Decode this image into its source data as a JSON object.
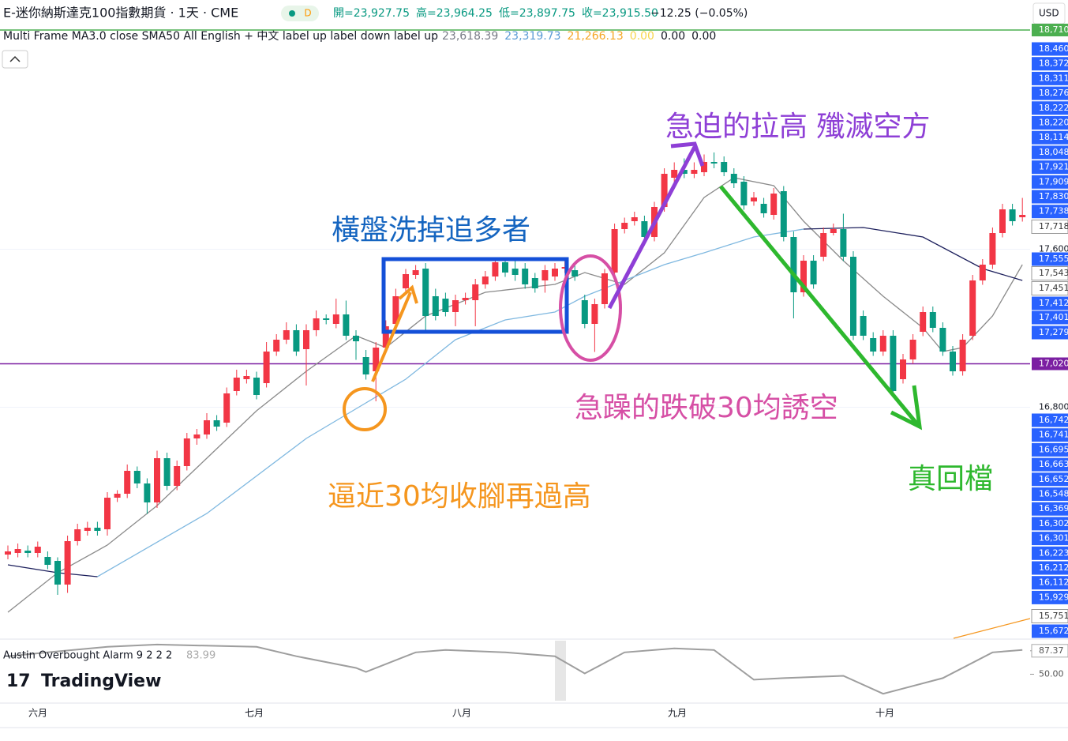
{
  "chart_data": {
    "type": "candlestick",
    "title": "E-迷你納斯達克100指數期貨 · 1天 · CME",
    "interval_badge": "D",
    "ohlc_labels": [
      "開=23,927.75",
      "高=23,964.25",
      "低=23,897.75",
      "收=23,915.50"
    ],
    "change_label": "−12.25 (−0.05%)",
    "currency": "USD",
    "indicator": {
      "name": "Multi Frame MA3.0 close SMA50 All English + 中文 label up label down label up",
      "values": [
        {
          "label": "23,618.39",
          "color": "#787b86"
        },
        {
          "label": "23,319.73",
          "color": "#5b9bd5"
        },
        {
          "label": "21,266.13",
          "color": "#f5a623"
        },
        {
          "label": "0.00",
          "color": "#f7d54a"
        },
        {
          "label": "0.00",
          "color": "#131722"
        },
        {
          "label": "0.00",
          "color": "#131722"
        }
      ]
    },
    "open": [
      16054,
      16062,
      16074,
      16062,
      16042,
      16022,
      15902,
      16122,
      16174,
      16190,
      16182,
      16342,
      16362,
      16478,
      16414,
      16318,
      16542,
      16402,
      16502,
      16642,
      16662,
      16734,
      16722,
      16882,
      16942,
      16950,
      16922,
      17082,
      17142,
      17190,
      17094,
      17190,
      17250,
      17222,
      17270,
      17162,
      17054,
      16982,
      17102,
      17222,
      17402,
      17470,
      17502,
      17362,
      17350,
      17282,
      17342,
      17342,
      17422,
      17462,
      17534,
      17502,
      17502,
      17454,
      17442,
      17462,
      17502,
      17494,
      17342,
      17222,
      17322,
      17482,
      17702,
      17742,
      17742,
      17662,
      17814,
      17962,
      18002,
      17982,
      17990,
      18042,
      18042,
      17982,
      17942,
      17842,
      17830,
      17774,
      17894,
      17662,
      17382,
      17542,
      17562,
      17682,
      17702,
      17562,
      17262,
      17150,
      17082,
      17162,
      16942,
      17042,
      17182,
      17282,
      17202,
      17082,
      16982,
      17162,
      17442,
      17522,
      17682,
      17802,
      17762
    ],
    "high": [
      16100,
      16110,
      16100,
      16120,
      16070,
      16040,
      16150,
      16210,
      16220,
      16220,
      16370,
      16380,
      16510,
      16500,
      16440,
      16580,
      16570,
      16530,
      16670,
      16690,
      16770,
      16760,
      16900,
      16990,
      16990,
      16980,
      17130,
      17170,
      17230,
      17220,
      17220,
      17290,
      17270,
      17350,
      17340,
      17190,
      17090,
      17130,
      17240,
      17400,
      17500,
      17520,
      17530,
      17400,
      17380,
      17370,
      17380,
      17450,
      17490,
      17560,
      17560,
      17540,
      17530,
      17480,
      17520,
      17530,
      17540,
      17520,
      17370,
      17350,
      17500,
      17730,
      17760,
      17790,
      17770,
      17840,
      18010,
      18040,
      18060,
      18040,
      18080,
      18090,
      18070,
      18010,
      17970,
      17890,
      17860,
      17910,
      17920,
      17690,
      17570,
      17570,
      17710,
      17730,
      17780,
      17590,
      17290,
      17180,
      17190,
      17190,
      17070,
      17170,
      17310,
      17310,
      17230,
      17110,
      17170,
      17470,
      17550,
      17710,
      17830,
      17830,
      17860
    ],
    "low": [
      16030,
      16040,
      16040,
      16040,
      15980,
      15850,
      15860,
      16100,
      16150,
      16150,
      16150,
      16320,
      16340,
      16390,
      16260,
      16290,
      16380,
      16380,
      16480,
      16610,
      16640,
      16680,
      16700,
      16860,
      16920,
      16840,
      16900,
      17060,
      17120,
      17060,
      16910,
      17160,
      17220,
      17200,
      17140,
      17040,
      16940,
      16830,
      17080,
      17200,
      17380,
      17450,
      17190,
      17240,
      17260,
      17210,
      17320,
      17210,
      17400,
      17440,
      17460,
      17440,
      17400,
      17380,
      17380,
      17440,
      17480,
      17440,
      17200,
      17080,
      17300,
      17460,
      17680,
      17720,
      17640,
      17640,
      17790,
      17940,
      17960,
      17960,
      17970,
      18010,
      17970,
      17910,
      17800,
      17820,
      17760,
      17750,
      17640,
      17250,
      17360,
      17400,
      17540,
      17670,
      17540,
      17140,
      17140,
      17060,
      17060,
      16860,
      16920,
      17020,
      17160,
      17180,
      17060,
      16960,
      16960,
      17140,
      17420,
      17500,
      17660,
      17720,
      17740
    ],
    "close": [
      16070,
      16082,
      16062,
      16094,
      16002,
      15902,
      16122,
      16182,
      16190,
      16174,
      16342,
      16362,
      16478,
      16414,
      16318,
      16542,
      16402,
      16502,
      16642,
      16662,
      16734,
      16702,
      16870,
      16950,
      16958,
      16862,
      17082,
      17142,
      17190,
      17082,
      17190,
      17250,
      17242,
      17270,
      17162,
      17134,
      16966,
      17102,
      17210,
      17362,
      17474,
      17494,
      17262,
      17262,
      17282,
      17342,
      17354,
      17422,
      17462,
      17534,
      17482,
      17470,
      17422,
      17402,
      17494,
      17502,
      17510,
      17462,
      17222,
      17322,
      17478,
      17702,
      17734,
      17762,
      17662,
      17814,
      17982,
      18002,
      17982,
      18002,
      18042,
      18034,
      17990,
      17934,
      17822,
      17862,
      17782,
      17882,
      17662,
      17382,
      17542,
      17422,
      17682,
      17702,
      17562,
      17162,
      17162,
      17082,
      17162,
      16882,
      17042,
      17142,
      17282,
      17202,
      17082,
      16982,
      17142,
      17442,
      17522,
      17682,
      17802,
      17742,
      17774
    ],
    "up_color": "#f23645",
    "down_color": "#089981",
    "ylim": [
      15630,
      18710
    ],
    "yticks": [
      {
        "value": 17600,
        "label": "17,600"
      },
      {
        "value": 16800,
        "label": "16,800"
      }
    ],
    "lines": [
      {
        "color": "#8a8a8a",
        "x": [
          0,
          5,
          10,
          15,
          20,
          25,
          30,
          35,
          38,
          42,
          48,
          55,
          58,
          62,
          66,
          70,
          73,
          77,
          80,
          84,
          88,
          92,
          94,
          96,
          99,
          102
        ],
        "values": [
          15762,
          15962,
          16102,
          16302,
          16542,
          16782,
          16982,
          17162,
          17102,
          17262,
          17382,
          17422,
          17482,
          17422,
          17582,
          17862,
          17962,
          17922,
          17742,
          17542,
          17362,
          17202,
          17082,
          17102,
          17262,
          17522
        ]
      },
      {
        "color": "#7fb8e0",
        "x": [
          9,
          20,
          30,
          36,
          40,
          45,
          50,
          55,
          58,
          62,
          66,
          70,
          75,
          80
        ],
        "values": [
          15942,
          16262,
          16642,
          16822,
          16942,
          17142,
          17242,
          17282,
          17362,
          17442,
          17522,
          17582,
          17662,
          17702
        ]
      },
      {
        "color": "#1c1f5c",
        "x": [
          0,
          5,
          9
        ],
        "values": [
          16002,
          15962,
          15942
        ]
      },
      {
        "color": "#1c1f5c",
        "x": [
          80,
          86,
          92,
          98,
          102
        ],
        "values": [
          17702,
          17710,
          17662,
          17502,
          17442
        ]
      }
    ],
    "hlines": [
      {
        "value": 18710,
        "label": "18,710",
        "color": "#4caf50"
      },
      {
        "value": 17020,
        "label": "17,020",
        "color": "#7b1fa2"
      }
    ],
    "price_tags": [
      {
        "label": "18,460",
        "color": "#2962ff"
      },
      {
        "label": "18,372",
        "color": "#2962ff"
      },
      {
        "label": "18,311",
        "color": "#2962ff"
      },
      {
        "label": "18,276",
        "color": "#2962ff"
      },
      {
        "label": "18,222",
        "color": "#2962ff"
      },
      {
        "label": "18,220",
        "color": "#2962ff"
      },
      {
        "label": "18,114",
        "color": "#2962ff"
      },
      {
        "label": "18,048",
        "color": "#2962ff"
      },
      {
        "label": "17,921",
        "color": "#2962ff"
      },
      {
        "label": "17,909",
        "color": "#2962ff"
      },
      {
        "label": "17,830",
        "color": "#2962ff"
      },
      {
        "label": "17,738",
        "color": "#2962ff"
      },
      {
        "label": "17,718",
        "color": "#ffffff"
      },
      {
        "label": "17,555",
        "color": "#2962ff"
      },
      {
        "label": "17,543",
        "color": "#ffffff"
      },
      {
        "label": "17,451",
        "color": "#ffffff"
      },
      {
        "label": "17,412",
        "color": "#2962ff"
      },
      {
        "label": "17,401",
        "color": "#2962ff"
      },
      {
        "label": "17,279",
        "color": "#2962ff"
      },
      {
        "label": "16,742",
        "color": "#2962ff"
      },
      {
        "label": "16,741",
        "color": "#2962ff"
      },
      {
        "label": "16,695",
        "color": "#2962ff"
      },
      {
        "label": "16,663",
        "color": "#2962ff"
      },
      {
        "label": "16,652",
        "color": "#2962ff"
      },
      {
        "label": "16,548",
        "color": "#2962ff"
      },
      {
        "label": "16,369",
        "color": "#2962ff"
      },
      {
        "label": "16,302",
        "color": "#2962ff"
      },
      {
        "label": "16,301",
        "color": "#2962ff"
      },
      {
        "label": "16,223",
        "color": "#2962ff"
      },
      {
        "label": "16,212",
        "color": "#2962ff"
      },
      {
        "label": "16,112",
        "color": "#2962ff"
      },
      {
        "label": "15,929",
        "color": "#2962ff"
      },
      {
        "label": "15,751",
        "color": "#ffffff"
      },
      {
        "label": "15,672",
        "color": "#2962ff"
      }
    ],
    "annotations": [
      {
        "text": "急迫的拉高 殲滅空方",
        "color": "#8e3fd6"
      },
      {
        "text": "橫盤洗掉追多者",
        "color": "#1565c0"
      },
      {
        "text": "急躁的跌破30均誘空",
        "color": "#d64fa5"
      },
      {
        "text": "逼近30均收腳再過高",
        "color": "#f5961e"
      },
      {
        "text": "真回檔",
        "color": "#2eb82e"
      }
    ],
    "oscillator": {
      "name": "Austin Overbought Alarm 9 2 2 2",
      "value_label": "83.99",
      "color": "#9e9e9e",
      "x": [
        0,
        4,
        10,
        15,
        25,
        29,
        35,
        36,
        41,
        44,
        50,
        55,
        58,
        62,
        67,
        71,
        75,
        78,
        84,
        88,
        94,
        99,
        102
      ],
      "values": [
        78.7,
        84.9,
        93.6,
        97.3,
        93.6,
        78.7,
        60.0,
        53.7,
        84.9,
        88.6,
        84.9,
        78.7,
        51.2,
        84.9,
        91.1,
        88.6,
        41.3,
        43.8,
        47.5,
        18.9,
        43.8,
        84.9,
        88.6
      ],
      "ylim": [
        4,
        106
      ],
      "yticks": [
        {
          "value": 87.37,
          "label": "87.37"
        },
        {
          "value": 50,
          "label": "50.00"
        }
      ]
    },
    "months": [
      "六月",
      "七月",
      "八月",
      "九月",
      "十月"
    ],
    "brand": "TradingView"
  }
}
